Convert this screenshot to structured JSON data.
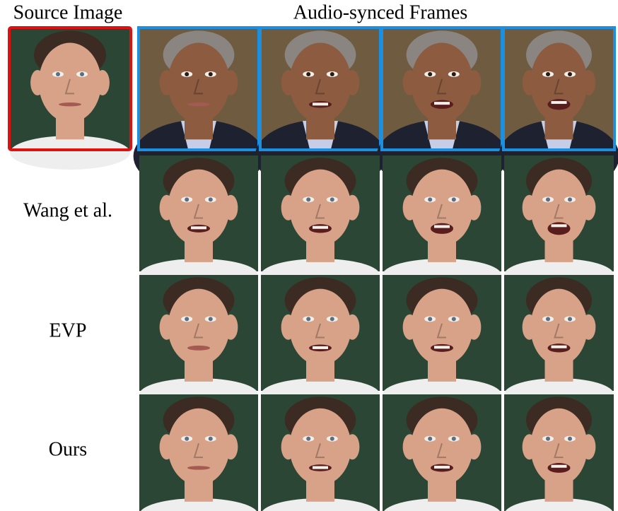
{
  "header": {
    "source_label": "Source Image",
    "frames_label": "Audio-synced Frames"
  },
  "rows": [
    {
      "label": "Wang et al."
    },
    {
      "label": "EVP"
    },
    {
      "label": "Ours"
    }
  ]
}
